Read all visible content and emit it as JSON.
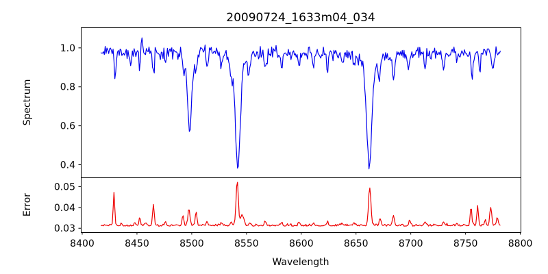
{
  "chart_data": {
    "type": "line",
    "title": "20090724_1633m04_034",
    "xlabel": "Wavelength",
    "xlim": [
      8398.75,
      8800.25
    ],
    "x_ticks": [
      8400,
      8450,
      8500,
      8550,
      8600,
      8650,
      8700,
      8750,
      8800
    ],
    "x_tick_labels": [
      "8400",
      "8450",
      "8500",
      "8550",
      "8600",
      "8650",
      "8700",
      "8750",
      "8800"
    ],
    "x_range": [
      8417,
      8782
    ],
    "x_step": 0.8,
    "grid": false,
    "legend": "none",
    "panels": [
      {
        "name": "spectrum",
        "ylabel": "Spectrum",
        "color": "#0000ee",
        "ylim": [
          0.335,
          1.105
        ],
        "y_ticks": [
          1.0,
          0.8,
          0.6,
          0.4
        ],
        "y_tick_labels": [
          "1.0",
          "0.8",
          "0.6",
          "0.4"
        ],
        "continuum": 0.975,
        "noise_sigma": 0.016,
        "main_absorption_minima": [
          {
            "wavelength": 8498,
            "flux": 0.55
          },
          {
            "wavelength": 8542,
            "flux": 0.37
          },
          {
            "wavelength": 8662,
            "flux": 0.38
          }
        ],
        "absorption_lines": [
          {
            "c": 8430,
            "d": 0.125,
            "s": 0.8
          },
          {
            "c": 8444,
            "d": 0.055,
            "s": 0.7
          },
          {
            "c": 8452.5,
            "d": 0.1,
            "s": 0.7
          },
          {
            "c": 8465,
            "d": 0.115,
            "s": 0.8
          },
          {
            "c": 8476,
            "d": 0.055,
            "s": 0.7
          },
          {
            "c": 8493,
            "d": 0.075,
            "s": 0.8
          },
          {
            "c": 8498.02,
            "d": 0.38,
            "s": 1.8
          },
          {
            "c": 8498.02,
            "d": 0.04,
            "s": 6
          },
          {
            "c": 8504,
            "d": 0.09,
            "s": 0.8
          },
          {
            "c": 8514,
            "d": 0.1,
            "s": 0.9
          },
          {
            "c": 8527,
            "d": 0.065,
            "s": 0.8
          },
          {
            "c": 8536,
            "d": 0.075,
            "s": 0.9
          },
          {
            "c": 8542.09,
            "d": 0.54,
            "s": 2.2
          },
          {
            "c": 8542.09,
            "d": 0.06,
            "s": 8
          },
          {
            "c": 8552,
            "d": 0.085,
            "s": 0.8
          },
          {
            "c": 8567,
            "d": 0.095,
            "s": 0.9
          },
          {
            "c": 8582,
            "d": 0.07,
            "s": 0.8
          },
          {
            "c": 8598,
            "d": 0.075,
            "s": 0.8
          },
          {
            "c": 8611,
            "d": 0.06,
            "s": 0.8
          },
          {
            "c": 8624,
            "d": 0.07,
            "s": 0.8
          },
          {
            "c": 8637,
            "d": 0.06,
            "s": 0.8
          },
          {
            "c": 8648,
            "d": 0.065,
            "s": 0.8
          },
          {
            "c": 8662.14,
            "d": 0.53,
            "s": 2.2
          },
          {
            "c": 8662.14,
            "d": 0.06,
            "s": 8
          },
          {
            "c": 8671,
            "d": 0.11,
            "s": 0.9
          },
          {
            "c": 8684,
            "d": 0.15,
            "s": 1.2
          },
          {
            "c": 8698,
            "d": 0.09,
            "s": 0.8
          },
          {
            "c": 8713,
            "d": 0.065,
            "s": 0.8
          },
          {
            "c": 8730,
            "d": 0.085,
            "s": 0.9
          },
          {
            "c": 8742,
            "d": 0.055,
            "s": 0.8
          },
          {
            "c": 8756,
            "d": 0.105,
            "s": 0.9
          },
          {
            "c": 8763,
            "d": 0.095,
            "s": 0.8
          },
          {
            "c": 8775,
            "d": 0.105,
            "s": 0.9
          }
        ],
        "emission_spikes": [
          {
            "c": 8454.3,
            "a": 0.085,
            "s": 0.6
          }
        ]
      },
      {
        "name": "error",
        "ylabel": "Error",
        "color": "#ee0000",
        "ylim": [
          0.0281,
          0.0544
        ],
        "y_ticks": [
          0.05,
          0.04,
          0.03
        ],
        "y_tick_labels": [
          "0.05",
          "0.04",
          "0.03"
        ],
        "baseline": 0.031,
        "noise_sigma": 0.0005,
        "peaks": [
          {
            "c": 8429,
            "a": 0.0155,
            "s": 0.7
          },
          {
            "c": 8436,
            "a": 0.001,
            "s": 0.7
          },
          {
            "c": 8448,
            "a": 0.0015,
            "s": 0.7
          },
          {
            "c": 8452.5,
            "a": 0.004,
            "s": 0.7
          },
          {
            "c": 8458,
            "a": 0.0015,
            "s": 0.7
          },
          {
            "c": 8465,
            "a": 0.01,
            "s": 0.8
          },
          {
            "c": 8476,
            "a": 0.002,
            "s": 0.7
          },
          {
            "c": 8492,
            "a": 0.005,
            "s": 0.7
          },
          {
            "c": 8497.5,
            "a": 0.008,
            "s": 0.9
          },
          {
            "c": 8504,
            "a": 0.0065,
            "s": 0.8
          },
          {
            "c": 8514,
            "a": 0.002,
            "s": 0.7
          },
          {
            "c": 8527,
            "a": 0.0012,
            "s": 0.7
          },
          {
            "c": 8536,
            "a": 0.002,
            "s": 0.8
          },
          {
            "c": 8541.5,
            "a": 0.0215,
            "s": 1.0
          },
          {
            "c": 8546,
            "a": 0.005,
            "s": 1.5
          },
          {
            "c": 8553,
            "a": 0.0015,
            "s": 0.7
          },
          {
            "c": 8567,
            "a": 0.002,
            "s": 0.8
          },
          {
            "c": 8582,
            "a": 0.0015,
            "s": 0.7
          },
          {
            "c": 8598,
            "a": 0.002,
            "s": 0.7
          },
          {
            "c": 8611,
            "a": 0.0012,
            "s": 0.7
          },
          {
            "c": 8624,
            "a": 0.0018,
            "s": 0.7
          },
          {
            "c": 8637,
            "a": 0.0012,
            "s": 0.7
          },
          {
            "c": 8648,
            "a": 0.0015,
            "s": 0.7
          },
          {
            "c": 8662.5,
            "a": 0.018,
            "s": 1.1
          },
          {
            "c": 8672,
            "a": 0.003,
            "s": 0.8
          },
          {
            "c": 8684,
            "a": 0.0045,
            "s": 0.9
          },
          {
            "c": 8699,
            "a": 0.0025,
            "s": 0.8
          },
          {
            "c": 8713,
            "a": 0.0015,
            "s": 0.7
          },
          {
            "c": 8730,
            "a": 0.002,
            "s": 0.8
          },
          {
            "c": 8742,
            "a": 0.0012,
            "s": 0.7
          },
          {
            "c": 8755,
            "a": 0.009,
            "s": 0.7
          },
          {
            "c": 8761,
            "a": 0.0095,
            "s": 0.7
          },
          {
            "c": 8768,
            "a": 0.003,
            "s": 0.7
          },
          {
            "c": 8773,
            "a": 0.0085,
            "s": 0.9
          },
          {
            "c": 8779,
            "a": 0.004,
            "s": 0.7
          }
        ]
      }
    ]
  }
}
